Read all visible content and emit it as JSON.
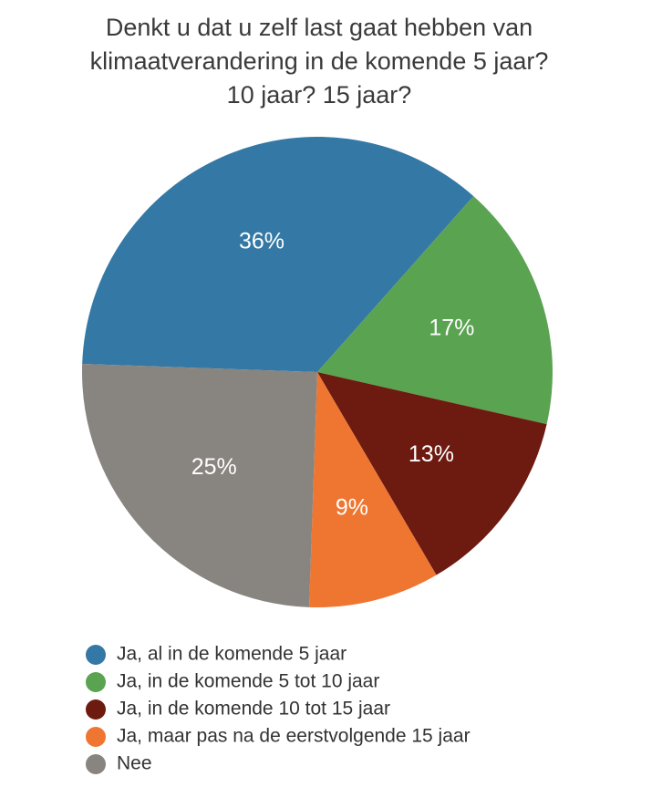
{
  "chart_data": {
    "type": "pie",
    "title": "Denkt u dat u zelf last gaat hebben van klimaatverandering in de komende 5 jaar? 10 jaar? 15 jaar?",
    "categories": [
      "Ja, al in de komende 5 jaar",
      "Ja, in de komende 5 tot 10 jaar",
      "Ja, in de komende 10 tot 15 jaar",
      "Ja, maar pas na de eerstvolgende 15 jaar",
      "Nee"
    ],
    "values": [
      36,
      17,
      13,
      9,
      25
    ],
    "value_labels": [
      "36%",
      "17%",
      "13%",
      "9%",
      "25%"
    ],
    "colors": [
      "#3478a5",
      "#5aa351",
      "#6d1a10",
      "#ee7631",
      "#88847f"
    ],
    "legend": "bottom-left"
  }
}
